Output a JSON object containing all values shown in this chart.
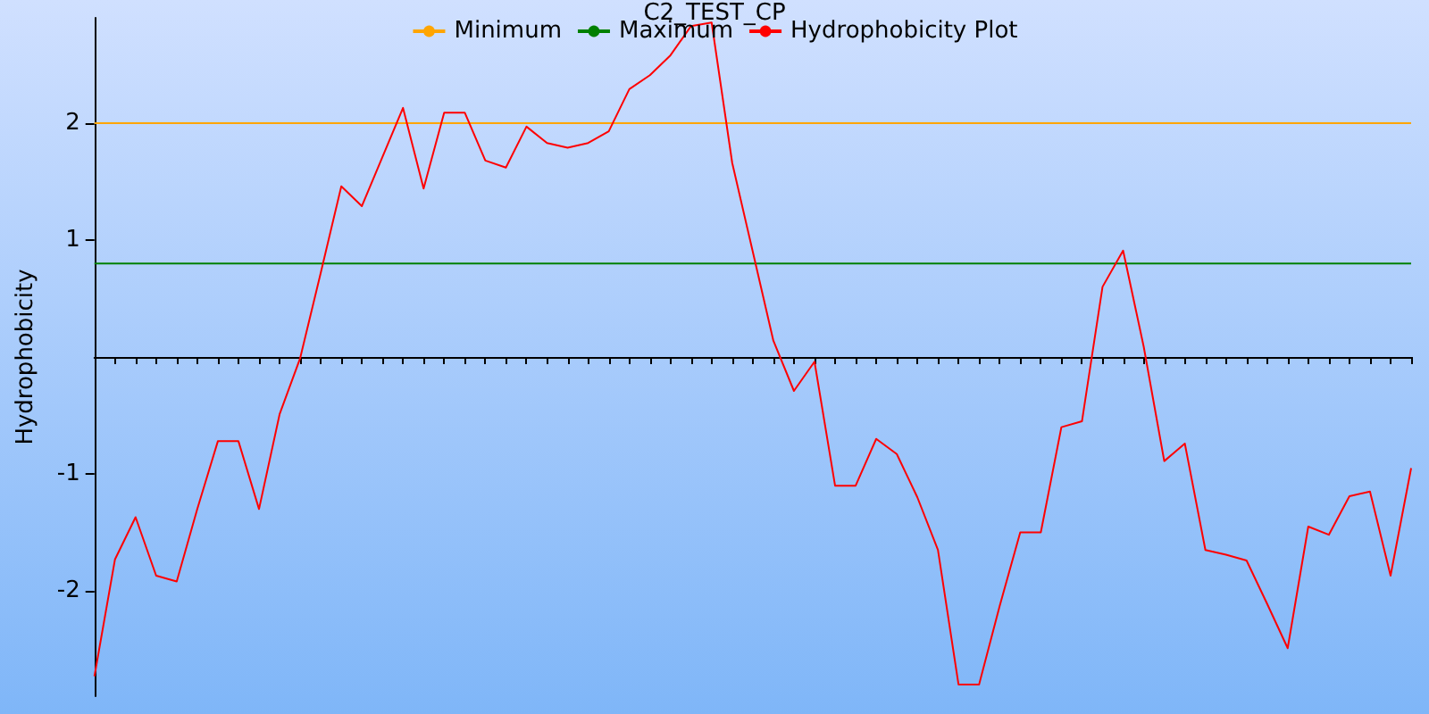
{
  "chart_data": {
    "type": "line",
    "title": "C2_TEST_CP",
    "ylabel": "Hydrophobicity",
    "categories": [
      null,
      null,
      null,
      null,
      null,
      null,
      null,
      null,
      null,
      null,
      null,
      null,
      null,
      null,
      null,
      null,
      null,
      null,
      null,
      null,
      null,
      null,
      null,
      null,
      null,
      null,
      null,
      null,
      null,
      null,
      null,
      null,
      null,
      null,
      null,
      null,
      null,
      null,
      null,
      null,
      null,
      null,
      null,
      null,
      null,
      null,
      null,
      null,
      null,
      null,
      null,
      null,
      null,
      null,
      null,
      null,
      null,
      null,
      null,
      null,
      null,
      null,
      null,
      null,
      null
    ],
    "series": [
      {
        "name": "Minimum",
        "color": "#ffa500",
        "values": [
          2,
          2,
          2,
          2,
          2,
          2,
          2,
          2,
          2,
          2,
          2,
          2,
          2,
          2,
          2,
          2,
          2,
          2,
          2,
          2,
          2,
          2,
          2,
          2,
          2,
          2,
          2,
          2,
          2,
          2,
          2,
          2,
          2,
          2,
          2,
          2,
          2,
          2,
          2,
          2,
          2,
          2,
          2,
          2,
          2,
          2,
          2,
          2,
          2,
          2,
          2,
          2,
          2,
          2,
          2,
          2,
          2,
          2,
          2,
          2,
          2,
          2,
          2,
          2,
          2
        ]
      },
      {
        "name": "Maximum",
        "color": "#008000",
        "values": [
          0.8,
          0.8,
          0.8,
          0.8,
          0.8,
          0.8,
          0.8,
          0.8,
          0.8,
          0.8,
          0.8,
          0.8,
          0.8,
          0.8,
          0.8,
          0.8,
          0.8,
          0.8,
          0.8,
          0.8,
          0.8,
          0.8,
          0.8,
          0.8,
          0.8,
          0.8,
          0.8,
          0.8,
          0.8,
          0.8,
          0.8,
          0.8,
          0.8,
          0.8,
          0.8,
          0.8,
          0.8,
          0.8,
          0.8,
          0.8,
          0.8,
          0.8,
          0.8,
          0.8,
          0.8,
          0.8,
          0.8,
          0.8,
          0.8,
          0.8,
          0.8,
          0.8,
          0.8,
          0.8,
          0.8,
          0.8,
          0.8,
          0.8,
          0.8,
          0.8,
          0.8,
          0.8,
          0.8,
          0.8,
          0.8
        ]
      },
      {
        "name": "Hydrophobicity Plot",
        "color": "#ff0000",
        "values": [
          -2.73,
          -1.73,
          -1.37,
          -1.87,
          -1.92,
          -1.3,
          -0.72,
          -0.72,
          -1.3,
          -0.49,
          -0.01,
          0.72,
          1.46,
          1.29,
          1.71,
          2.13,
          1.44,
          2.09,
          2.09,
          1.68,
          1.62,
          1.97,
          1.83,
          1.79,
          1.83,
          1.93,
          2.29,
          2.41,
          2.58,
          2.83,
          2.86,
          1.66,
          0.9,
          0.14,
          -0.29,
          -0.04,
          -1.1,
          -1.1,
          -0.7,
          -0.83,
          -1.2,
          -1.65,
          -2.8,
          -2.8,
          -2.13,
          -1.5,
          -1.5,
          -0.6,
          -0.55,
          0.6,
          0.91,
          0.09,
          -0.89,
          -0.74,
          -1.65,
          -1.69,
          -1.74,
          -2.11,
          -2.49,
          -1.45,
          -1.52,
          -1.19,
          -1.15,
          -1.87,
          -0.95
        ]
      }
    ],
    "ylim": [
      -2.9,
      2.9
    ],
    "yticks": [
      -2,
      -1,
      1,
      2
    ],
    "grid": false,
    "legend": "top",
    "marker": "none",
    "line_style": "solid"
  }
}
